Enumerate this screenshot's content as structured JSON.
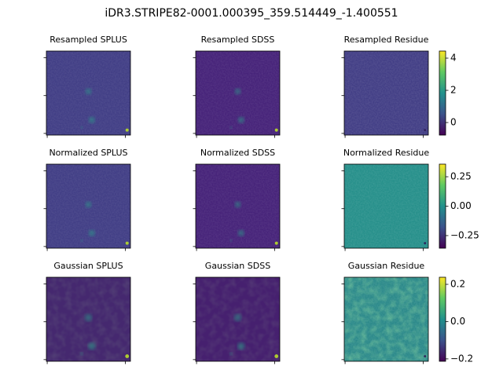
{
  "figure_title": "iDR3.STRIPE82-0001.000395_359.514449_-1.400551",
  "chart_data": [
    {
      "type": "image",
      "title": "Resampled SPLUS",
      "color": "#423f86"
    },
    {
      "type": "image",
      "title": "Resampled SDSS",
      "color": "#47247a"
    },
    {
      "type": "image",
      "title": "Resampled Residue",
      "color": "#433f86",
      "clim": [
        -0.78,
        4.44
      ],
      "cticks": [
        0,
        2,
        4
      ]
    },
    {
      "type": "image",
      "title": "Normalized SPLUS",
      "color": "#423f86"
    },
    {
      "type": "image",
      "title": "Normalized SDSS",
      "color": "#47247a"
    },
    {
      "type": "image",
      "title": "Normalized Residue",
      "color": "#27908b",
      "clim": [
        -0.357,
        0.357
      ],
      "cticks": [
        {
          "value": 0.25,
          "label": "0.25"
        },
        {
          "value": 0,
          "label": "0.00"
        },
        {
          "value": -0.25,
          "label": "−0.25"
        }
      ]
    },
    {
      "type": "image",
      "title": "Gaussian SPLUS",
      "color": "#45286f"
    },
    {
      "type": "image",
      "title": "Gaussian SDSS",
      "color": "#46206f"
    },
    {
      "type": "image",
      "title": "Gaussian Residue",
      "color": "#2c8a8a",
      "clim": [
        -0.213,
        0.238
      ],
      "cticks": [
        {
          "value": 0.2,
          "label": "0.2"
        },
        {
          "value": 0,
          "label": "0.0"
        },
        {
          "value": -0.2,
          "label": "−0.2"
        }
      ]
    }
  ]
}
